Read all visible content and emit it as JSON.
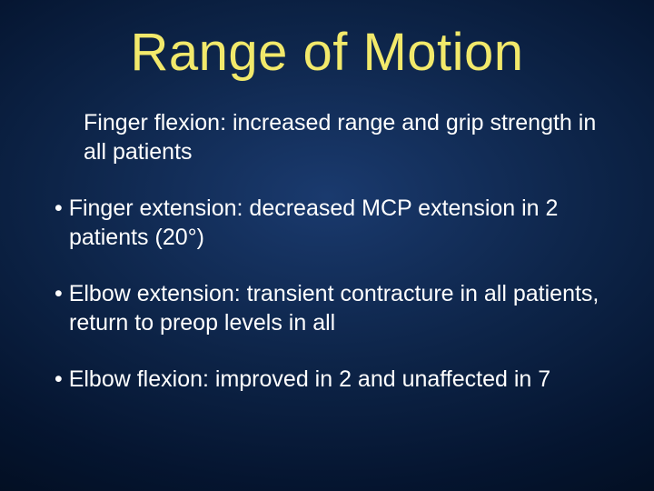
{
  "slide": {
    "title": "Range of Motion",
    "title_color": "#f2e96b",
    "text_color": "#ffffff",
    "background_gradient": [
      "#1a3a6e",
      "#0d2448",
      "#051530",
      "#000814"
    ],
    "title_fontsize": 58,
    "body_fontsize": 25,
    "bullets": [
      {
        "marker": "",
        "text": "Finger flexion: increased range and grip strength in all patients"
      },
      {
        "marker": "• ",
        "text": "Finger extension: decreased MCP extension in 2 patients (20°)"
      },
      {
        "marker": "• ",
        "text": "Elbow extension: transient contracture in all patients, return to preop levels in all"
      },
      {
        "marker": "• ",
        "text": "Elbow flexion: improved in 2 and unaffected in 7"
      }
    ]
  }
}
